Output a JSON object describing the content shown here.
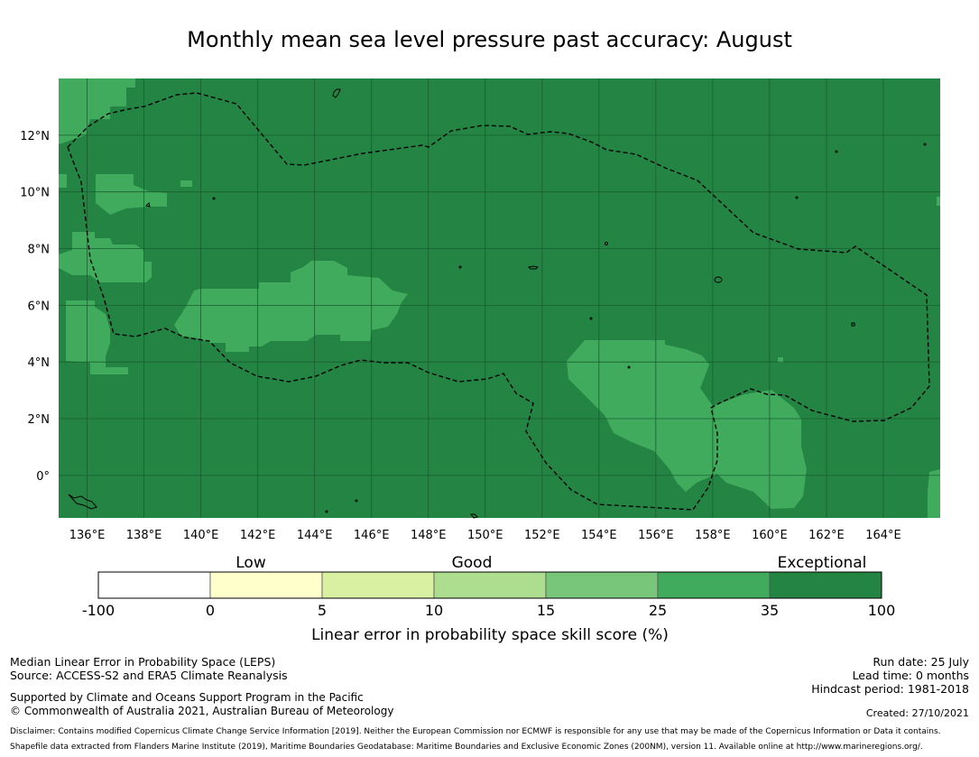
{
  "title": "Monthly mean sea level pressure past accuracy: August",
  "map": {
    "lon_range": [
      135,
      166
    ],
    "lat_range": [
      -1.5,
      14
    ],
    "lon_ticks": [
      "136°E",
      "138°E",
      "140°E",
      "142°E",
      "144°E",
      "146°E",
      "148°E",
      "150°E",
      "152°E",
      "154°E",
      "156°E",
      "158°E",
      "160°E",
      "162°E",
      "164°E"
    ],
    "lat_ticks": [
      "12°N",
      "10°N",
      "8°N",
      "6°N",
      "4°N",
      "2°N",
      "0°"
    ],
    "colors": {
      "exceptional": "#238443",
      "good_high": "#41ab5d",
      "good_mid": "#78c679"
    },
    "eez_boundary_style": "dashed black"
  },
  "legend": {
    "categories": [
      "Low",
      "Good",
      "Exceptional"
    ],
    "bins": [
      {
        "from": -100,
        "to": 0,
        "color": "#ffffff"
      },
      {
        "from": 0,
        "to": 5,
        "color": "#ffffcc"
      },
      {
        "from": 5,
        "to": 10,
        "color": "#d9f0a3"
      },
      {
        "from": 10,
        "to": 15,
        "color": "#addd8e"
      },
      {
        "from": 15,
        "to": 25,
        "color": "#78c679"
      },
      {
        "from": 25,
        "to": 35,
        "color": "#41ab5d"
      },
      {
        "from": 35,
        "to": 100,
        "color": "#238443"
      }
    ],
    "tick_labels": [
      "-100",
      "0",
      "5",
      "10",
      "15",
      "25",
      "35",
      "100"
    ],
    "title": "Linear error in probability space skill score (%)"
  },
  "footer": {
    "line1": "Median Linear Error in Probability Space (LEPS)",
    "line2": "Source: ACCESS-S2 and ERA5 Climate Reanalysis",
    "line3": "Supported by Climate and Oceans Support Program in the Pacific",
    "line4": "© Commonwealth of Australia 2021, Australian Bureau of Meteorology",
    "run_date": "Run date: 25 July",
    "lead_time": "Lead time: 0 months",
    "hindcast": "Hindcast period: 1981-2018",
    "created": "Created: 27/10/2021",
    "disclaimer": "Disclaimer: Contains modified Copernicus Climate Change Service Information [2019]. Neither the European Commission nor ECMWF is responsible for any use that may be made of the Copernicus Information or Data it contains.",
    "shapefile": "Shapefile data extracted from Flanders Marine Institute (2019), Maritime Boundaries Geodatabase: Maritime Boundaries and Exclusive Economic Zones (200NM), version 11. Available online at http://www.marineregions.org/."
  }
}
